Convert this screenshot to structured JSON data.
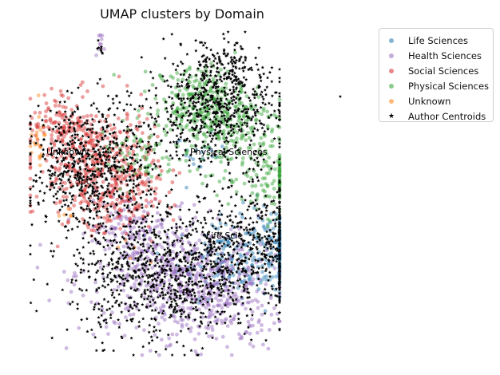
{
  "chart_data": {
    "type": "scatter",
    "title": "UMAP clusters by Domain",
    "axes_visible": false,
    "grid": false,
    "legend_position": "top-right, outside plot",
    "series": [
      {
        "name": "Life Sciences",
        "color": "#1f77b4",
        "marker": "circle",
        "regions": [
          {
            "center": [
              0.78,
              0.32
            ],
            "spread": [
              0.08,
              0.07
            ],
            "count": 170
          },
          {
            "center": [
              0.62,
              0.3
            ],
            "spread": [
              0.07,
              0.06
            ],
            "count": 90
          },
          {
            "center": [
              0.55,
              0.62
            ],
            "spread": [
              0.04,
              0.03
            ],
            "count": 20
          }
        ]
      },
      {
        "name": "Health Sciences",
        "color": "#9467bd",
        "marker": "circle",
        "regions": [
          {
            "center": [
              0.45,
              0.25
            ],
            "spread": [
              0.14,
              0.09
            ],
            "count": 420
          },
          {
            "center": [
              0.6,
              0.18
            ],
            "spread": [
              0.1,
              0.08
            ],
            "count": 260
          },
          {
            "center": [
              0.32,
              0.4
            ],
            "spread": [
              0.06,
              0.05
            ],
            "count": 90
          },
          {
            "center": [
              0.24,
              0.97
            ],
            "spread": [
              0.01,
              0.015
            ],
            "count": 10
          }
        ]
      },
      {
        "name": "Social Sciences",
        "color": "#d62728",
        "marker": "circle",
        "regions": [
          {
            "center": [
              0.22,
              0.6
            ],
            "spread": [
              0.09,
              0.09
            ],
            "count": 420
          },
          {
            "center": [
              0.3,
              0.48
            ],
            "spread": [
              0.06,
              0.06
            ],
            "count": 120
          },
          {
            "center": [
              0.1,
              0.72
            ],
            "spread": [
              0.04,
              0.04
            ],
            "count": 80
          }
        ]
      },
      {
        "name": "Physical Sciences",
        "color": "#2ca02c",
        "marker": "circle",
        "regions": [
          {
            "center": [
              0.62,
              0.72
            ],
            "spread": [
              0.1,
              0.07
            ],
            "count": 260
          },
          {
            "center": [
              0.55,
              0.8
            ],
            "spread": [
              0.07,
              0.05
            ],
            "count": 150
          },
          {
            "center": [
              0.75,
              0.55
            ],
            "spread": [
              0.08,
              0.06
            ],
            "count": 120
          },
          {
            "center": [
              0.35,
              0.62
            ],
            "spread": [
              0.06,
              0.05
            ],
            "count": 60
          }
        ]
      },
      {
        "name": "Unknown",
        "color": "#ff7f0e",
        "marker": "circle",
        "regions": [
          {
            "center": [
              0.04,
              0.66
            ],
            "spread": [
              0.015,
              0.04
            ],
            "count": 22
          },
          {
            "center": [
              0.12,
              0.45
            ],
            "spread": [
              0.02,
              0.02
            ],
            "count": 5
          },
          {
            "center": [
              0.35,
              0.32
            ],
            "spread": [
              0.03,
              0.02
            ],
            "count": 5
          }
        ]
      },
      {
        "name": "Author Centroids",
        "color": "#000000",
        "marker": "star",
        "regions": [
          {
            "center": [
              0.45,
              0.25
            ],
            "spread": [
              0.15,
              0.1
            ],
            "count": 900
          },
          {
            "center": [
              0.22,
              0.58
            ],
            "spread": [
              0.1,
              0.1
            ],
            "count": 650
          },
          {
            "center": [
              0.6,
              0.75
            ],
            "spread": [
              0.11,
              0.08
            ],
            "count": 550
          },
          {
            "center": [
              0.75,
              0.35
            ],
            "spread": [
              0.1,
              0.09
            ],
            "count": 380
          },
          {
            "center": [
              0.62,
              0.88
            ],
            "spread": [
              0.06,
              0.05
            ],
            "count": 150
          },
          {
            "center": [
              0.24,
              0.95
            ],
            "spread": [
              0.01,
              0.01
            ],
            "count": 8
          }
        ],
        "outliers": [
          [
            0.99,
            0.8
          ]
        ]
      }
    ],
    "annotations": [
      {
        "text": "Unknown",
        "x": 0.07,
        "y": 0.62
      },
      {
        "text": "Physical Sciences",
        "x": 0.52,
        "y": 0.62
      },
      {
        "text": "Soc",
        "x": 0.16,
        "y": 0.53
      },
      {
        "text": "Life Scie",
        "x": 0.57,
        "y": 0.36
      }
    ]
  }
}
